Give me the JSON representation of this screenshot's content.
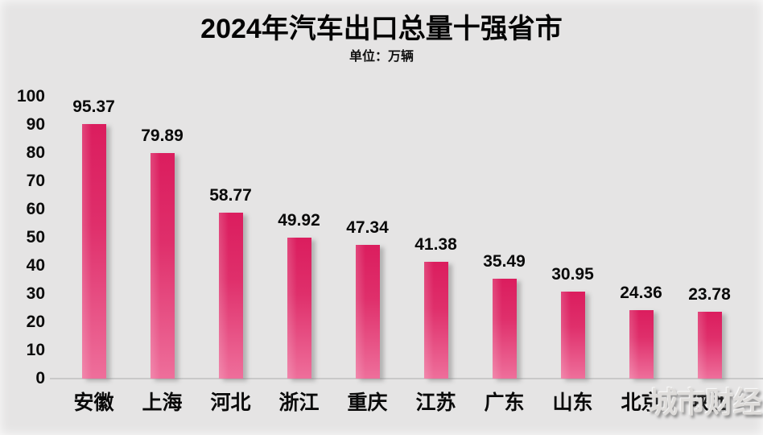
{
  "title": "2024年汽车出口总量十强省市",
  "subtitle": "单位：万辆",
  "watermark": "城市财经",
  "colors": {
    "background": "#e5e4e4",
    "bar_top": "#db1d5e",
    "bar_bottom": "#ee6f9b",
    "axis_line": "#c9c9c9",
    "text": "#0a0a0a",
    "watermark_text": "#dedcda"
  },
  "chart_data": {
    "type": "bar",
    "title": "2024年汽车出口总量十强省市",
    "subtitle": "单位：万辆",
    "categories": [
      "安徽",
      "上海",
      "河北",
      "浙江",
      "重庆",
      "江苏",
      "广东",
      "山东",
      "北京",
      "陕西"
    ],
    "values": [
      95.37,
      79.89,
      58.77,
      49.92,
      47.34,
      41.38,
      35.49,
      30.95,
      24.36,
      23.78
    ],
    "value_labels": [
      "95.37",
      "79.89",
      "58.77",
      "49.92",
      "47.34",
      "41.38",
      "35.49",
      "30.95",
      "24.36",
      "23.78"
    ],
    "xlabel": "",
    "ylabel": "",
    "ylim": [
      0,
      100
    ],
    "yticks": [
      0,
      10,
      20,
      30,
      40,
      50,
      60,
      70,
      80,
      90,
      100
    ],
    "grid": false,
    "legend_position": "none",
    "note": "第10项类别标签被水印遮挡"
  }
}
